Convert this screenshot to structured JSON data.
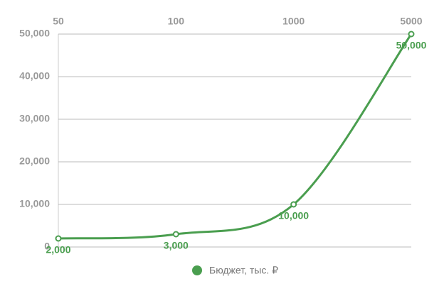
{
  "chart_data": {
    "type": "line",
    "categories": [
      "50",
      "100",
      "1000",
      "5000"
    ],
    "series": [
      {
        "name": "Бюджет, тыс. ₽",
        "color": "#4a9e4f",
        "values": [
          2000,
          3000,
          10000,
          50000
        ],
        "value_labels": [
          "2,000",
          "3,000",
          "10,000",
          "50,000"
        ]
      }
    ],
    "ylim": [
      0,
      50000
    ],
    "yticks": [
      0,
      {
        "value": 10000,
        "label": "10,000"
      },
      {
        "value": 20000,
        "label": "20,000"
      },
      {
        "value": 30000,
        "label": "30,000"
      },
      {
        "value": 40000,
        "label": "40,000"
      },
      {
        "value": 50000,
        "label": "50,000"
      }
    ],
    "grid": true,
    "legend": "bottom"
  }
}
